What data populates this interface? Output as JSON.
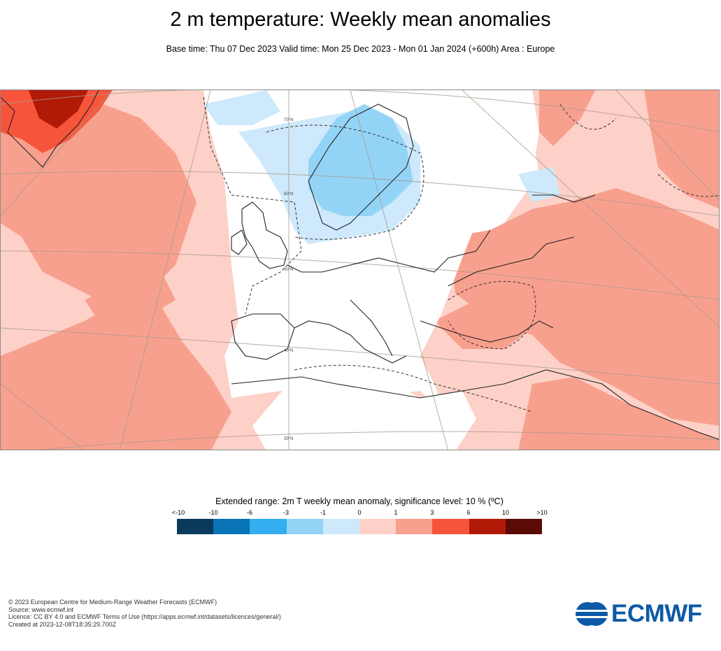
{
  "header": {
    "title": "2 m temperature: Weekly mean anomalies",
    "subtitle": "Base time: Thu 07 Dec 2023 Valid time: Mon 25 Dec 2023 - Mon 01 Jan 2024 (+600h) Area : Europe"
  },
  "map": {
    "latitude_labels": [
      "70°N",
      "60°N",
      "50°N",
      "40°N",
      "30°N"
    ]
  },
  "legend": {
    "title": "Extended range: 2m T weekly mean anomaly, significance level: 10 % (ºC)",
    "ticks": [
      "<-10",
      "-10",
      "-6",
      "-3",
      "-1",
      "0",
      "1",
      "3",
      "6",
      "10",
      ">10"
    ],
    "colors": [
      "#0b3a5c",
      "#0a74b8",
      "#33aef0",
      "#93d4f6",
      "#cde9fb",
      "#fdd1c8",
      "#f8a08e",
      "#f7553b",
      "#b21a08",
      "#5a0b05"
    ]
  },
  "colors": {
    "warm_strong": "#f7553b",
    "warm_medium": "#f8a08e",
    "warm_light": "#fdd1c8",
    "very_warm": "#b21a08",
    "cool_light": "#cde9fb",
    "cool_medium": "#93d4f6",
    "logo_blue": "#0c5aa6"
  },
  "footer": {
    "line1": "© 2023 European Centre for Medium-Range Weather Forecasts (ECMWF)",
    "line2": "Source: www.ecmwf.int",
    "line3": "Licence: CC BY 4.0 and ECMWF Terms of Use (https://apps.ecmwf.int/datasets/licences/general/)",
    "line4": "Created at 2023-12-08T18:35:29.700Z"
  },
  "logo": {
    "text": "ECMWF",
    "icon": "ecmwf-logo-icon"
  }
}
